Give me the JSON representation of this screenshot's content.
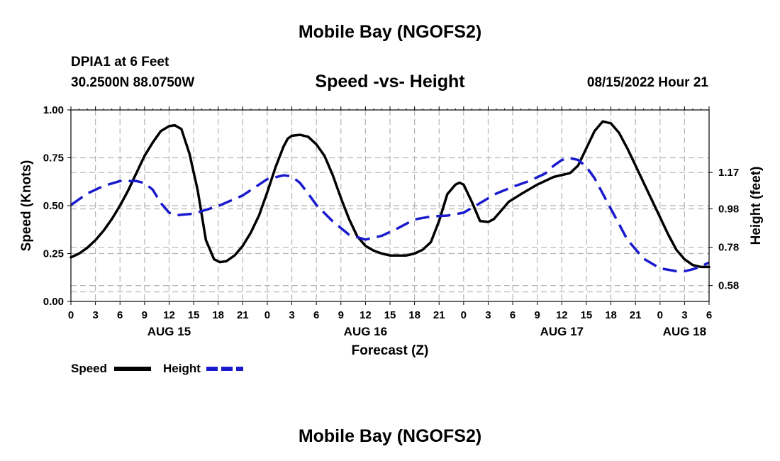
{
  "header": {
    "title": "Mobile Bay (NGOFS2)",
    "station": "DPIA1 at 6 Feet",
    "coords": "30.2500N  88.0750W",
    "subtitle": "Speed -vs- Height",
    "datetime": "08/15/2022 Hour 21"
  },
  "footer": {
    "title": "Mobile Bay (NGOFS2)"
  },
  "chart_data": {
    "type": "line",
    "x_unit": "forecast hour from 00Z AUG 15 (shown as hour-of-day ticks)",
    "xlabel": "Forecast (Z)",
    "ylabel_left": "Speed (Knots)",
    "ylabel_right": "Height (feet)",
    "xlim": [
      0,
      78
    ],
    "ylim_left": [
      0,
      1
    ],
    "ylim_right": [
      0.4972,
      1.4963
    ],
    "x_ticks": [
      {
        "x": 0,
        "label": "0"
      },
      {
        "x": 3,
        "label": "3"
      },
      {
        "x": 6,
        "label": "6"
      },
      {
        "x": 9,
        "label": "9"
      },
      {
        "x": 12,
        "label": "12"
      },
      {
        "x": 15,
        "label": "15"
      },
      {
        "x": 18,
        "label": "18"
      },
      {
        "x": 21,
        "label": "21"
      },
      {
        "x": 24,
        "label": "0"
      },
      {
        "x": 27,
        "label": "3"
      },
      {
        "x": 30,
        "label": "6"
      },
      {
        "x": 33,
        "label": "9"
      },
      {
        "x": 36,
        "label": "12"
      },
      {
        "x": 39,
        "label": "15"
      },
      {
        "x": 42,
        "label": "18"
      },
      {
        "x": 45,
        "label": "21"
      },
      {
        "x": 48,
        "label": "0"
      },
      {
        "x": 51,
        "label": "3"
      },
      {
        "x": 54,
        "label": "6"
      },
      {
        "x": 57,
        "label": "9"
      },
      {
        "x": 60,
        "label": "12"
      },
      {
        "x": 63,
        "label": "15"
      },
      {
        "x": 66,
        "label": "18"
      },
      {
        "x": 69,
        "label": "21"
      },
      {
        "x": 72,
        "label": "0"
      },
      {
        "x": 75,
        "label": "3"
      },
      {
        "x": 78,
        "label": "6"
      }
    ],
    "day_labels": [
      {
        "x": 12,
        "label": "AUG 15"
      },
      {
        "x": 36,
        "label": "AUG 16"
      },
      {
        "x": 60,
        "label": "AUG 17"
      },
      {
        "x": 75,
        "label": "AUG 18"
      }
    ],
    "y_ticks_left": [
      {
        "v": 0,
        "label": "0.00"
      },
      {
        "v": 0.25,
        "label": "0.25"
      },
      {
        "v": 0.5,
        "label": "0.50"
      },
      {
        "v": 0.75,
        "label": "0.75"
      },
      {
        "v": 1.0,
        "label": "1.00"
      }
    ],
    "y_ticks_right": [
      {
        "v": 0.58,
        "label": "0.58"
      },
      {
        "v": 0.78,
        "label": "0.78"
      },
      {
        "v": 0.98,
        "label": "0.98"
      },
      {
        "v": 1.17,
        "label": "1.17"
      }
    ],
    "grid": true,
    "legend_position": "bottom-left",
    "series": [
      {
        "name": "Speed",
        "axis": "left",
        "color": "#000000",
        "dash": "solid",
        "x": [
          0,
          1,
          2,
          3,
          4,
          5,
          6,
          7,
          8,
          9,
          10,
          11,
          12,
          12.7,
          13.5,
          14.5,
          15.5,
          16.5,
          17.5,
          18.2,
          19,
          20,
          21,
          22,
          23,
          24,
          25,
          26,
          26.5,
          27,
          28,
          29,
          30,
          31,
          32,
          33,
          34,
          35,
          36,
          37,
          38,
          39,
          40,
          41,
          42,
          43,
          44,
          45,
          46,
          47,
          47.5,
          48,
          49,
          50,
          51,
          51.7,
          52.5,
          53.5,
          55,
          57,
          59,
          61,
          62,
          63,
          64,
          65,
          66,
          67,
          68,
          69,
          70,
          71,
          72,
          73,
          74,
          75,
          76,
          77,
          78
        ],
        "values": [
          0.23,
          0.25,
          0.28,
          0.32,
          0.37,
          0.43,
          0.5,
          0.58,
          0.67,
          0.76,
          0.83,
          0.89,
          0.915,
          0.92,
          0.9,
          0.77,
          0.58,
          0.32,
          0.22,
          0.205,
          0.21,
          0.24,
          0.29,
          0.36,
          0.45,
          0.57,
          0.7,
          0.81,
          0.85,
          0.865,
          0.87,
          0.86,
          0.82,
          0.76,
          0.66,
          0.54,
          0.43,
          0.34,
          0.29,
          0.265,
          0.25,
          0.24,
          0.24,
          0.24,
          0.25,
          0.27,
          0.31,
          0.42,
          0.56,
          0.61,
          0.62,
          0.61,
          0.52,
          0.42,
          0.415,
          0.43,
          0.47,
          0.52,
          0.56,
          0.61,
          0.65,
          0.67,
          0.71,
          0.8,
          0.89,
          0.94,
          0.93,
          0.88,
          0.8,
          0.71,
          0.62,
          0.53,
          0.44,
          0.35,
          0.27,
          0.22,
          0.19,
          0.18,
          0.18
        ]
      },
      {
        "name": "Height",
        "axis": "right",
        "color": "#1a1acd",
        "dash": "dashed",
        "x": [
          0,
          2,
          4,
          6,
          7,
          8,
          9,
          10,
          11,
          12,
          13,
          15,
          18,
          21,
          24,
          25,
          26,
          27,
          28,
          29,
          30,
          32,
          34,
          36,
          38,
          40,
          42,
          44,
          46,
          48,
          50,
          52,
          54,
          56,
          58,
          59,
          60,
          61,
          62,
          63,
          64,
          65,
          66,
          67,
          68,
          70,
          72,
          74,
          75,
          76,
          77,
          78
        ],
        "values": [
          1.0,
          1.06,
          1.1,
          1.125,
          1.125,
          1.125,
          1.115,
          1.08,
          1.01,
          0.96,
          0.947,
          0.955,
          0.995,
          1.05,
          1.135,
          1.145,
          1.155,
          1.15,
          1.115,
          1.06,
          1.0,
          0.915,
          0.845,
          0.82,
          0.84,
          0.88,
          0.925,
          0.94,
          0.945,
          0.96,
          1.01,
          1.06,
          1.095,
          1.125,
          1.165,
          1.205,
          1.235,
          1.245,
          1.235,
          1.2,
          1.14,
          1.06,
          0.98,
          0.9,
          0.82,
          0.72,
          0.67,
          0.655,
          0.655,
          0.665,
          0.68,
          0.7
        ]
      }
    ]
  }
}
